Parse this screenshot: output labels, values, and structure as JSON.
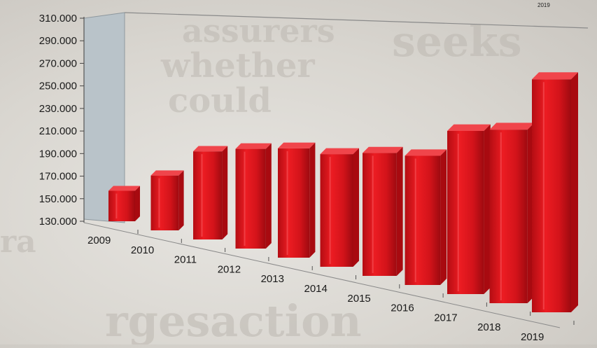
{
  "chart_data": {
    "type": "bar",
    "categories": [
      "2009",
      "2010",
      "2011",
      "2012",
      "2013",
      "2014",
      "2015",
      "2016",
      "2017",
      "2018",
      "2019"
    ],
    "values": [
      157000,
      177000,
      203000,
      210000,
      215000,
      215000,
      220000,
      222000,
      243000,
      247000,
      283000
    ],
    "y_ticks": [
      "310.000",
      "290.000",
      "270.000",
      "250.000",
      "230.000",
      "210.000",
      "190.000",
      "170.000",
      "150.000",
      "130.000"
    ],
    "ylim": [
      130000,
      310000
    ],
    "corner_label": "2019",
    "title": "",
    "xlabel": "",
    "ylabel": "",
    "bar_color": "#e0141b",
    "bar_side_color": "#a80a10",
    "bar_top_color": "#f0454b",
    "back_wall_color": "#b9c3c9"
  }
}
